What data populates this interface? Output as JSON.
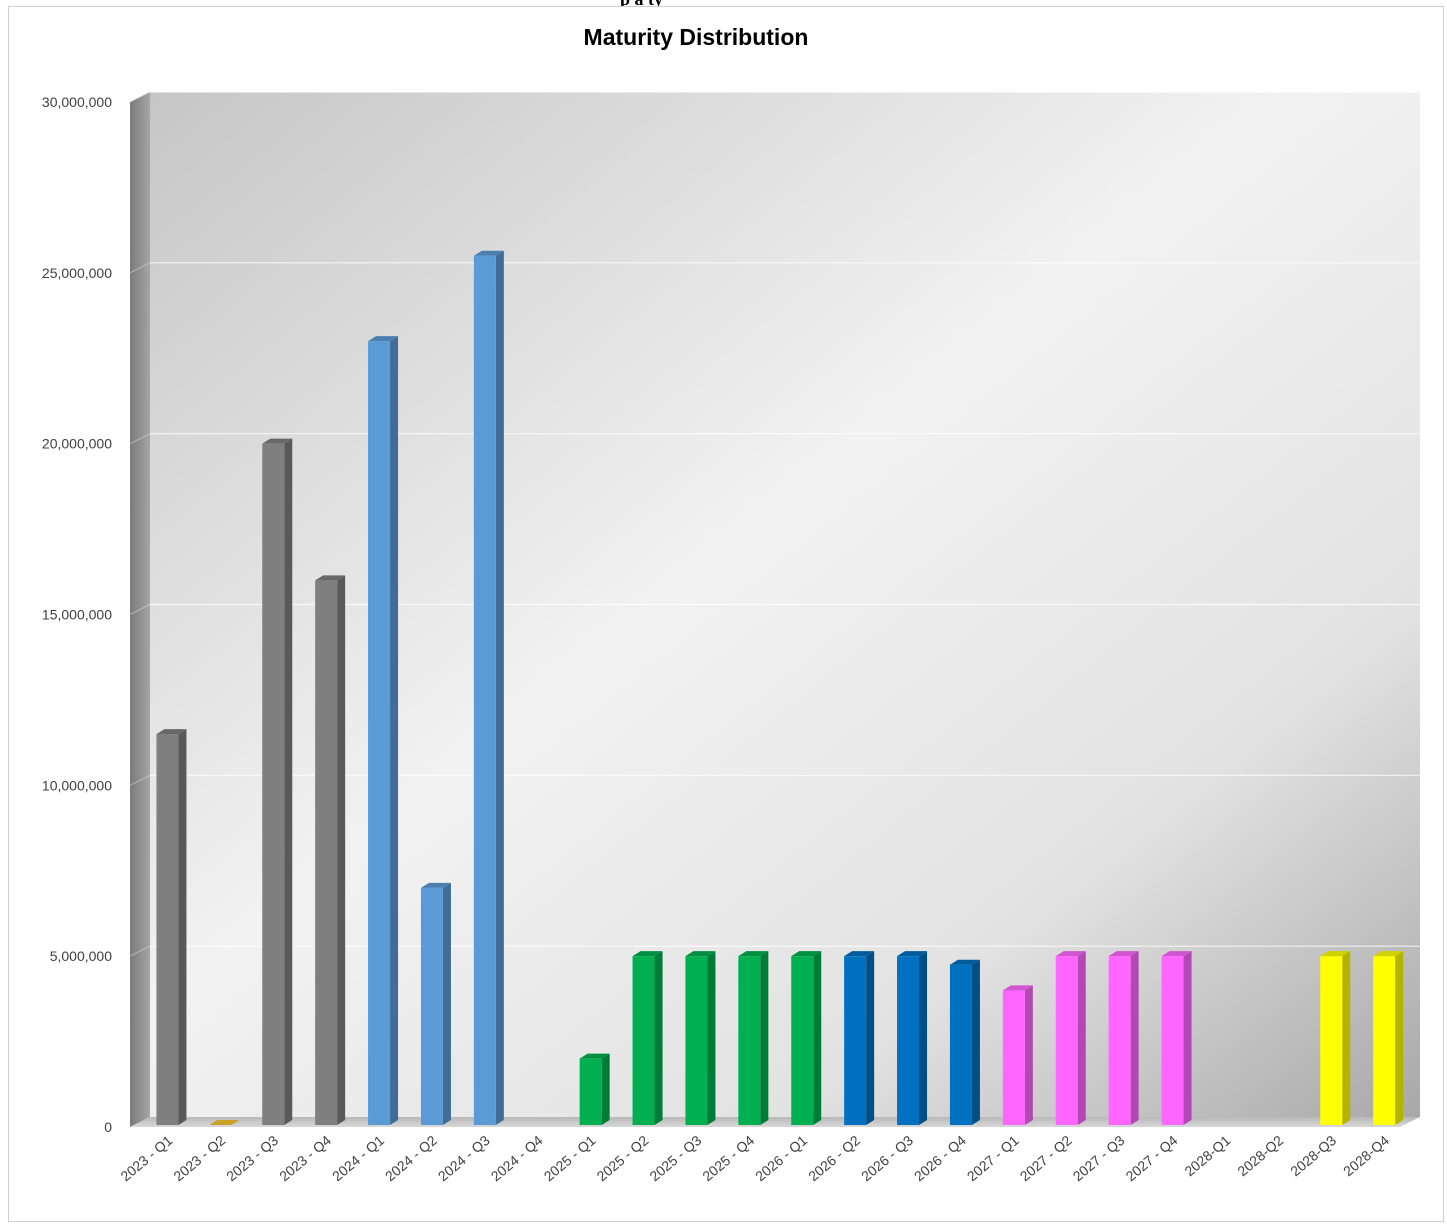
{
  "page": {
    "top_title_fragment": "p a  ty"
  },
  "chart_data": {
    "type": "bar",
    "title": "Maturity Distribution",
    "xlabel": "",
    "ylabel": "",
    "ylim": [
      0,
      30000000
    ],
    "yticks": [
      "0",
      "5,000,000",
      "10,000,000",
      "15,000,000",
      "20,000,000",
      "25,000,000",
      "30,000,000"
    ],
    "grid": true,
    "legend": "none",
    "style": "3d-column",
    "categories": [
      "2023 - Q1",
      "2023 - Q2",
      "2023 - Q3",
      "2023 - Q4",
      "2024 - Q1",
      "2024 - Q2",
      "2024 - Q3",
      "2024 - Q4",
      "2025 - Q1",
      "2025 - Q2",
      "2025 - Q3",
      "2025 - Q4",
      "2026 - Q1",
      "2026 - Q2",
      "2026 - Q3",
      "2026 - Q4",
      "2027 - Q1",
      "2027 - Q2",
      "2027 - Q3",
      "2027 - Q4",
      "2028-Q1",
      "2028-Q2",
      "2028-Q3",
      "2028-Q4"
    ],
    "values": [
      11500000,
      0,
      20000000,
      16000000,
      23000000,
      7000000,
      25500000,
      0,
      2000000,
      5000000,
      5000000,
      5000000,
      5000000,
      5000000,
      5000000,
      4750000,
      4000000,
      5000000,
      5000000,
      5000000,
      0,
      0,
      5000000,
      5000000
    ],
    "bar_colors": [
      "#7f7f7f",
      "#c9a227",
      "#7f7f7f",
      "#7f7f7f",
      "#5b9bd5",
      "#5b9bd5",
      "#5b9bd5",
      "#5b9bd5",
      "#00b050",
      "#00b050",
      "#00b050",
      "#00b050",
      "#00b050",
      "#0070c0",
      "#0070c0",
      "#0070c0",
      "#ff66ff",
      "#ff66ff",
      "#ff66ff",
      "#ff66ff",
      "#ffff00",
      "#ffff00",
      "#ffff00",
      "#ffff00"
    ]
  }
}
